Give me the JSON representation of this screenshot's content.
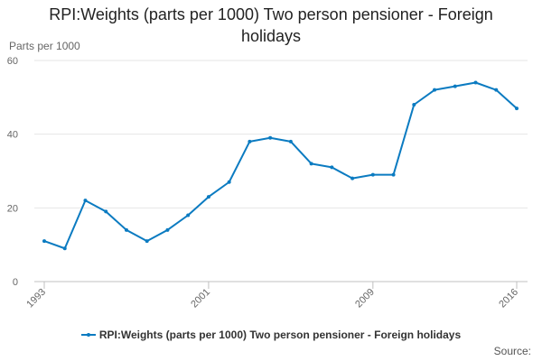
{
  "chart_data": {
    "type": "line",
    "title": "RPI:Weights (parts per 1000) Two person pensioner - Foreign holidays",
    "ylabel": "Parts per 1000",
    "xlabel": "",
    "ylim": [
      0,
      60
    ],
    "yticks": [
      0,
      20,
      40,
      60
    ],
    "xticks": [
      1993,
      2001,
      2009,
      2016
    ],
    "grid": true,
    "legend_position": "bottom",
    "colors": {
      "series": "#0b7bc1",
      "grid": "#e6e6e6",
      "axis": "#c0c0c0"
    },
    "x": [
      1993,
      1994,
      1995,
      1996,
      1997,
      1998,
      1999,
      2000,
      2001,
      2002,
      2003,
      2004,
      2005,
      2006,
      2007,
      2008,
      2009,
      2010,
      2011,
      2012,
      2013,
      2014,
      2015,
      2016
    ],
    "series": [
      {
        "name": "RPI:Weights (parts per 1000) Two person pensioner - Foreign holidays",
        "values": [
          11,
          9,
          22,
          19,
          14,
          11,
          14,
          18,
          23,
          27,
          38,
          39,
          38,
          32,
          31,
          28,
          29,
          29,
          48,
          52,
          53,
          54,
          52,
          47
        ]
      }
    ],
    "source_label": "Source:"
  }
}
